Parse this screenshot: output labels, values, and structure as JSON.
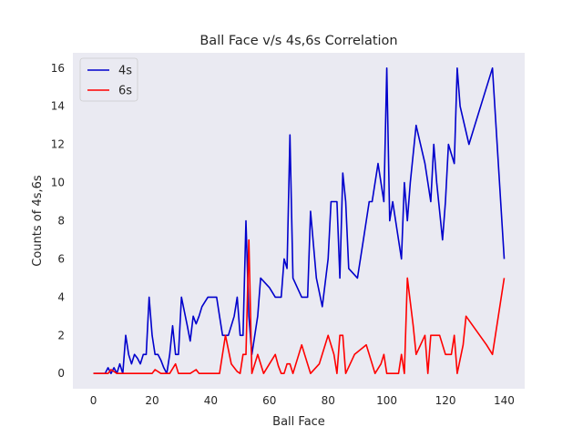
{
  "chart_data": {
    "type": "line",
    "title": "Ball Face v/s 4s,6s Correlation",
    "xlabel": "Ball Face",
    "ylabel": "Counts of 4s,6s",
    "xlim": [
      -7,
      147
    ],
    "ylim": [
      -0.8,
      16.8
    ],
    "xticks": [
      0,
      20,
      40,
      60,
      80,
      100,
      120,
      140
    ],
    "yticks": [
      0,
      2,
      4,
      6,
      8,
      10,
      12,
      14,
      16
    ],
    "grid": false,
    "legend_position": "top-left",
    "background_color": "#eaeaf2",
    "series": [
      {
        "name": "4s",
        "color": "#0000cc",
        "points": [
          [
            0,
            0
          ],
          [
            1,
            0
          ],
          [
            2,
            0
          ],
          [
            3,
            0
          ],
          [
            4,
            0
          ],
          [
            5,
            0.3
          ],
          [
            6,
            0
          ],
          [
            7,
            0.3
          ],
          [
            8,
            0
          ],
          [
            9,
            0.5
          ],
          [
            10,
            0
          ],
          [
            11,
            2
          ],
          [
            12,
            1
          ],
          [
            13,
            0.5
          ],
          [
            14,
            1
          ],
          [
            15,
            0.8
          ],
          [
            16,
            0.5
          ],
          [
            17,
            1
          ],
          [
            18,
            1
          ],
          [
            19,
            4
          ],
          [
            20,
            2
          ],
          [
            21,
            1
          ],
          [
            22,
            1
          ],
          [
            23,
            0.7
          ],
          [
            24,
            0.3
          ],
          [
            25,
            0
          ],
          [
            26,
            1
          ],
          [
            27,
            2.5
          ],
          [
            28,
            1
          ],
          [
            29,
            1
          ],
          [
            30,
            4
          ],
          [
            32,
            2.5
          ],
          [
            33,
            1.7
          ],
          [
            34,
            3
          ],
          [
            35,
            2.6
          ],
          [
            36,
            3
          ],
          [
            37,
            3.5
          ],
          [
            39,
            4
          ],
          [
            41,
            4
          ],
          [
            42,
            4
          ],
          [
            43,
            3
          ],
          [
            44,
            2
          ],
          [
            46,
            2
          ],
          [
            48,
            3
          ],
          [
            49,
            4
          ],
          [
            50,
            2
          ],
          [
            51,
            2
          ],
          [
            52,
            8
          ],
          [
            53,
            3
          ],
          [
            54,
            1
          ],
          [
            56,
            3
          ],
          [
            57,
            5
          ],
          [
            60,
            4.5
          ],
          [
            62,
            4
          ],
          [
            64,
            4
          ],
          [
            65,
            6
          ],
          [
            66,
            5.5
          ],
          [
            67,
            12.5
          ],
          [
            68,
            5
          ],
          [
            71,
            4
          ],
          [
            73,
            4
          ],
          [
            74,
            8.5
          ],
          [
            76,
            5
          ],
          [
            78,
            3.5
          ],
          [
            80,
            6
          ],
          [
            81,
            9
          ],
          [
            83,
            9
          ],
          [
            84,
            5
          ],
          [
            85,
            10.5
          ],
          [
            86,
            9
          ],
          [
            87,
            5.5
          ],
          [
            90,
            5
          ],
          [
            92,
            7
          ],
          [
            94,
            9
          ],
          [
            95,
            9
          ],
          [
            97,
            11
          ],
          [
            99,
            9
          ],
          [
            100,
            16
          ],
          [
            101,
            8
          ],
          [
            102,
            9
          ],
          [
            103,
            8
          ],
          [
            105,
            6
          ],
          [
            106,
            10
          ],
          [
            107,
            8
          ],
          [
            108,
            10
          ],
          [
            110,
            13
          ],
          [
            113,
            11
          ],
          [
            115,
            9
          ],
          [
            116,
            12
          ],
          [
            117,
            10
          ],
          [
            119,
            7
          ],
          [
            120,
            9
          ],
          [
            121,
            12
          ],
          [
            122,
            11.5
          ],
          [
            123,
            11
          ],
          [
            124,
            16
          ],
          [
            125,
            14
          ],
          [
            128,
            12
          ],
          [
            130,
            13
          ],
          [
            133,
            14.5
          ],
          [
            136,
            16
          ],
          [
            140,
            6
          ]
        ]
      },
      {
        "name": "6s",
        "color": "#ff0000",
        "points": [
          [
            0,
            0
          ],
          [
            5,
            0
          ],
          [
            6,
            0.2
          ],
          [
            7,
            0.1
          ],
          [
            8,
            0
          ],
          [
            10,
            0
          ],
          [
            20,
            0
          ],
          [
            21,
            0.2
          ],
          [
            23,
            0
          ],
          [
            26,
            0
          ],
          [
            28,
            0.5
          ],
          [
            29,
            0
          ],
          [
            33,
            0
          ],
          [
            35,
            0.2
          ],
          [
            36,
            0
          ],
          [
            41,
            0
          ],
          [
            43,
            0
          ],
          [
            45,
            2
          ],
          [
            47,
            0.5
          ],
          [
            49,
            0.1
          ],
          [
            50,
            0
          ],
          [
            51,
            1
          ],
          [
            52,
            1
          ],
          [
            53,
            7
          ],
          [
            54,
            0
          ],
          [
            56,
            1
          ],
          [
            58,
            0
          ],
          [
            60,
            0.5
          ],
          [
            62,
            1
          ],
          [
            63,
            0.4
          ],
          [
            64,
            0
          ],
          [
            65,
            0
          ],
          [
            66,
            0.5
          ],
          [
            67,
            0.5
          ],
          [
            68,
            0
          ],
          [
            70,
            1
          ],
          [
            71,
            1.5
          ],
          [
            72,
            1
          ],
          [
            74,
            0
          ],
          [
            77,
            0.5
          ],
          [
            80,
            2
          ],
          [
            82,
            1
          ],
          [
            83,
            0
          ],
          [
            84,
            2
          ],
          [
            85,
            2
          ],
          [
            86,
            0
          ],
          [
            89,
            1
          ],
          [
            93,
            1.5
          ],
          [
            95,
            0.5
          ],
          [
            96,
            0
          ],
          [
            98,
            0.5
          ],
          [
            99,
            1
          ],
          [
            100,
            0
          ],
          [
            103,
            0
          ],
          [
            104,
            0
          ],
          [
            105,
            1
          ],
          [
            106,
            0
          ],
          [
            107,
            5
          ],
          [
            109,
            2.5
          ],
          [
            110,
            1
          ],
          [
            113,
            2
          ],
          [
            114,
            0
          ],
          [
            115,
            2
          ],
          [
            118,
            2
          ],
          [
            119,
            1.5
          ],
          [
            120,
            1
          ],
          [
            122,
            1
          ],
          [
            123,
            2
          ],
          [
            124,
            0
          ],
          [
            126,
            1.5
          ],
          [
            127,
            3
          ],
          [
            134,
            1.5
          ],
          [
            136,
            1
          ],
          [
            140,
            5
          ]
        ]
      }
    ]
  }
}
